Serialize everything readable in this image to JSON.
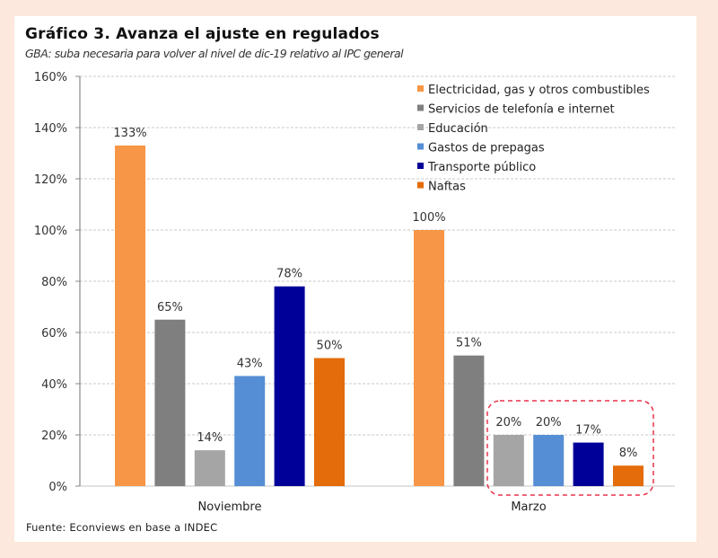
{
  "title": "Gráfico  3. Avanza el ajuste en regulados",
  "subtitle": "GBA: suba necesaria para volver al nivel de dic-19 relativo al IPC general",
  "source": "Fuente: Econviews en base a INDEC",
  "chart_data": {
    "type": "bar",
    "title": "Gráfico  3. Avanza el ajuste en regulados",
    "subtitle": "GBA: suba necesaria para volver al nivel de dic-19 relativo al IPC general",
    "xlabel": "",
    "ylabel": "",
    "categories": [
      "Noviembre",
      "Marzo"
    ],
    "ylim": [
      0,
      160
    ],
    "yticks": [
      0,
      20,
      40,
      60,
      80,
      100,
      120,
      140,
      160
    ],
    "ytick_labels": [
      "0%",
      "20%",
      "40%",
      "60%",
      "80%",
      "100%",
      "120%",
      "140%",
      "160%"
    ],
    "grid": "horizontal dashed",
    "legend_position": "top-right",
    "series": [
      {
        "name": "Electricidad, gas y otros combustibles",
        "color": "#f79646",
        "values": [
          133,
          100
        ],
        "labels": [
          "133%",
          "100%"
        ]
      },
      {
        "name": "Servicios  de telefonía e internet",
        "color": "#7f7f7f",
        "values": [
          65,
          51
        ],
        "labels": [
          "65%",
          "51%"
        ]
      },
      {
        "name": "Educación",
        "color": "#a5a5a5",
        "values": [
          14,
          20
        ],
        "labels": [
          "14%",
          "20%"
        ]
      },
      {
        "name": "Gastos de prepagas",
        "color": "#558ed5",
        "values": [
          43,
          20
        ],
        "labels": [
          "43%",
          "20%"
        ]
      },
      {
        "name": "Transporte público",
        "color": "#000099",
        "values": [
          78,
          17
        ],
        "labels": [
          "78%",
          "17%"
        ]
      },
      {
        "name": "Naftas",
        "color": "#e46c0a",
        "values": [
          50,
          8
        ],
        "labels": [
          "50%",
          "8%"
        ]
      }
    ],
    "annotations": [
      {
        "type": "dashed-rounded-box",
        "color": "#e8334a",
        "encloses": "Marzo: Educación, Gastos de prepagas, Transporte público, Naftas"
      }
    ]
  }
}
